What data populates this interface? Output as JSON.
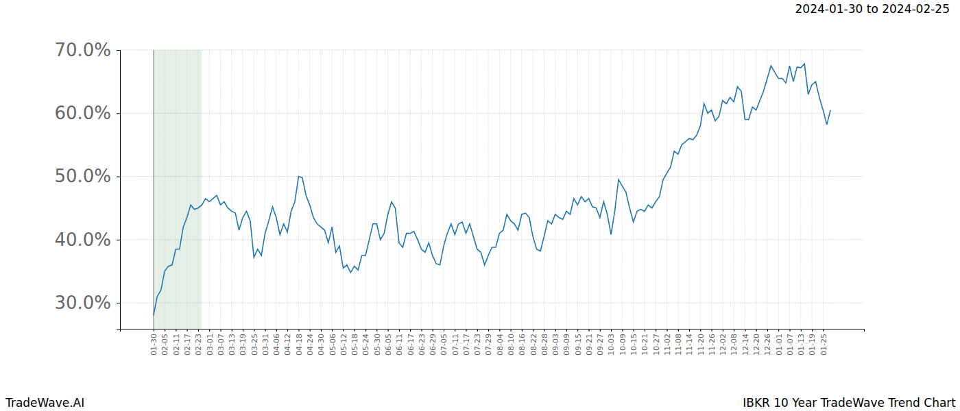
{
  "chart_data": {
    "type": "line",
    "title": "IBKR 10 Year TradeWave Trend Chart",
    "subtitle": "2024-01-30 to 2024-02-25",
    "source": "TradeWave.AI",
    "color": "#1f77b4",
    "grid": true,
    "line_style": "solid",
    "highlight": {
      "from": 0,
      "to": 13
    },
    "categories": [
      "01-30",
      null,
      null,
      "02-05",
      null,
      null,
      "02-11",
      null,
      null,
      "02-17",
      null,
      null,
      "02-23",
      null,
      null,
      "03-01",
      null,
      null,
      "03-07",
      null,
      null,
      "03-13",
      null,
      null,
      "03-19",
      null,
      null,
      "03-25",
      null,
      null,
      "03-31",
      null,
      null,
      "04-06",
      null,
      null,
      "04-12",
      null,
      null,
      "04-18",
      null,
      null,
      "04-24",
      null,
      null,
      "04-30",
      null,
      null,
      "05-06",
      null,
      null,
      "05-12",
      null,
      null,
      "05-18",
      null,
      null,
      "05-24",
      null,
      null,
      "05-30",
      null,
      null,
      "06-05",
      null,
      null,
      "06-11",
      null,
      null,
      "06-17",
      null,
      null,
      "06-23",
      null,
      null,
      "06-29",
      null,
      null,
      "07-05",
      null,
      null,
      "07-11",
      null,
      null,
      "07-17",
      null,
      null,
      "07-23",
      null,
      null,
      "07-29",
      null,
      null,
      "08-04",
      null,
      null,
      "08-10",
      null,
      null,
      "08-16",
      null,
      null,
      "08-22",
      null,
      null,
      "08-28",
      null,
      null,
      "09-03",
      null,
      null,
      "09-09",
      null,
      null,
      "09-15",
      null,
      null,
      "09-21",
      null,
      null,
      "09-27",
      null,
      null,
      "10-03",
      null,
      null,
      "10-09",
      null,
      null,
      "10-15",
      null,
      null,
      "10-21",
      null,
      null,
      "10-27",
      null,
      null,
      "11-02",
      null,
      null,
      "11-08",
      null,
      null,
      "11-14",
      null,
      null,
      "11-20",
      null,
      null,
      "11-26",
      null,
      null,
      "12-02",
      null,
      null,
      "12-08",
      null,
      null,
      "12-14",
      null,
      null,
      "12-20",
      null,
      null,
      "12-26",
      null,
      null,
      "01-01",
      null,
      null,
      "01-07",
      null,
      null,
      "01-13",
      null,
      null,
      "01-19",
      null,
      null,
      "01-25",
      null,
      null
    ],
    "values": [
      28.0,
      31.0,
      32.0,
      35.0,
      35.8,
      36.0,
      38.5,
      38.5,
      42.0,
      43.5,
      45.5,
      44.8,
      45.0,
      45.5,
      46.5,
      46.0,
      46.5,
      47.0,
      45.5,
      46.0,
      45.0,
      44.5,
      44.2,
      41.5,
      43.5,
      44.5,
      43.0,
      37.2,
      38.5,
      37.5,
      41.0,
      43.0,
      45.2,
      43.5,
      40.8,
      42.5,
      41.2,
      44.5,
      46.0,
      50.0,
      49.8,
      47.0,
      45.5,
      43.5,
      42.5,
      42.0,
      41.5,
      39.5,
      42.0,
      38.0,
      39.0,
      35.5,
      36.0,
      34.8,
      35.8,
      35.2,
      37.5,
      37.5,
      40.0,
      42.5,
      42.5,
      40.0,
      41.0,
      44.0,
      46.0,
      45.0,
      39.5,
      38.8,
      41.0,
      41.0,
      41.3,
      40.0,
      38.5,
      38.0,
      39.5,
      37.5,
      36.2,
      36.0,
      39.0,
      41.0,
      42.5,
      40.8,
      42.5,
      42.8,
      41.0,
      42.5,
      40.5,
      38.5,
      38.0,
      36.0,
      37.5,
      38.8,
      38.8,
      41.0,
      41.5,
      44.0,
      43.0,
      42.5,
      41.5,
      44.0,
      44.2,
      43.5,
      40.5,
      38.5,
      38.2,
      40.5,
      43.0,
      42.5,
      44.0,
      43.5,
      43.2,
      44.5,
      44.0,
      46.5,
      45.5,
      46.8,
      46.0,
      46.5,
      45.2,
      45.0,
      43.5,
      46.0,
      44.0,
      40.8,
      44.5,
      49.5,
      48.5,
      47.5,
      45.0,
      42.8,
      44.5,
      44.8,
      44.5,
      45.5,
      45.0,
      46.0,
      46.8,
      49.5,
      50.5,
      51.5,
      54.0,
      53.5,
      55.0,
      55.5,
      56.0,
      55.8,
      56.5,
      58.0,
      61.5,
      60.0,
      60.5,
      58.8,
      59.5,
      62.0,
      61.5,
      62.5,
      61.8,
      64.2,
      63.5,
      59.0,
      59.0,
      61.0,
      60.5,
      62.0,
      63.5,
      65.5,
      67.5,
      66.5,
      65.5,
      65.5,
      64.8,
      67.5,
      65.0,
      67.3,
      67.2,
      67.8,
      63.0,
      64.5,
      65.0,
      62.5,
      60.5,
      58.2,
      60.5
    ],
    "ylim": [
      25.9,
      70
    ],
    "yticks": [
      {
        "value": 30,
        "label": "30.0%"
      },
      {
        "value": 40,
        "label": "40.0%"
      },
      {
        "value": 50,
        "label": "50.0%"
      },
      {
        "value": 60,
        "label": "60.0%"
      },
      {
        "value": 70,
        "label": "70.0%"
      }
    ]
  }
}
